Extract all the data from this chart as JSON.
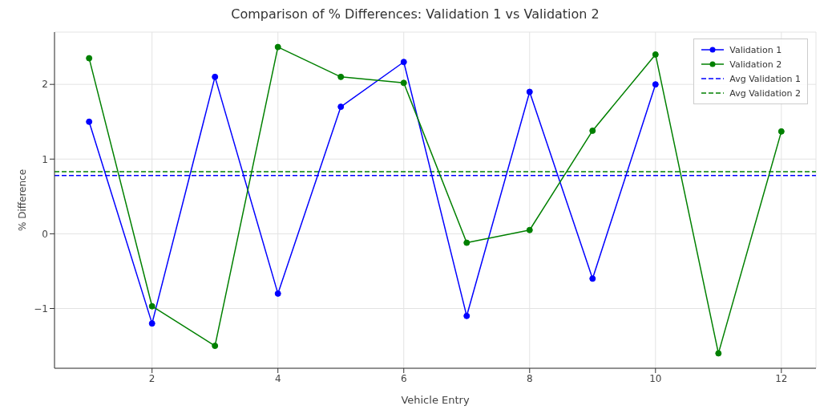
{
  "chart_data": {
    "type": "line",
    "title": "Comparison of % Differences: Validation 1 vs Validation 2",
    "xlabel": "Vehicle Entry",
    "ylabel": "% Difference",
    "x": [
      1,
      2,
      3,
      4,
      5,
      6,
      7,
      8,
      9,
      10,
      11,
      12
    ],
    "series": [
      {
        "name": "Validation 1",
        "color": "#0000ff",
        "values": [
          1.5,
          -1.2,
          2.1,
          -0.8,
          1.7,
          2.3,
          -1.1,
          1.9,
          -0.6,
          2.0,
          null,
          null
        ]
      },
      {
        "name": "Validation 2",
        "color": "#008000",
        "values": [
          2.35,
          -0.97,
          -1.5,
          2.5,
          2.1,
          2.02,
          -0.12,
          0.05,
          1.38,
          2.4,
          -1.6,
          1.37
        ]
      }
    ],
    "ref_lines": [
      {
        "axis": "y",
        "value": 0.78,
        "label": "Avg Validation 1",
        "color": "#0000ff",
        "line_style": "dashed"
      },
      {
        "axis": "y",
        "value": 0.83,
        "label": "Avg Validation 2",
        "color": "#008000",
        "line_style": "dashed"
      }
    ],
    "xlim": [
      0.45,
      12.55
    ],
    "xticks": [
      2,
      4,
      6,
      8,
      10,
      12
    ],
    "ylim": [
      -1.8,
      2.7
    ],
    "yticks": [
      -1,
      0,
      1,
      2
    ],
    "grid": true,
    "legend": "top right",
    "marker": "circle",
    "line_style": "solid"
  }
}
